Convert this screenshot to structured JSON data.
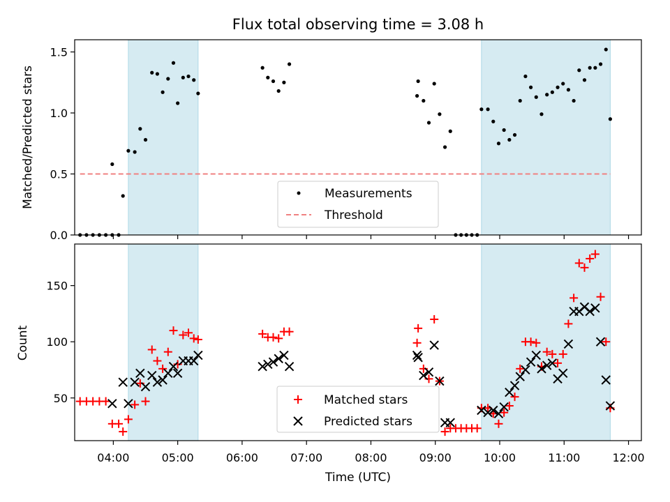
{
  "chart_data": [
    {
      "type": "scatter",
      "title": "Flux total observing time = 3.08 h",
      "ylabel": "Matched/Predicted stars",
      "xlabel": "",
      "xlim": [
        "03:24",
        "12:12"
      ],
      "ylim": [
        0,
        1.6
      ],
      "yticks": [
        "0.0",
        "0.5",
        "1.0",
        "1.5"
      ],
      "grid": false,
      "legend": {
        "placement": "bottom-center"
      },
      "shaded_intervals": [
        [
          "04:14",
          "05:19"
        ],
        [
          "09:43",
          "11:43"
        ]
      ],
      "threshold": {
        "name": "Threshold",
        "value": 0.5,
        "x_range": [
          "03:29",
          "11:43"
        ],
        "color": "#f08080"
      },
      "series": [
        {
          "name": "Measurements",
          "marker": "dot",
          "color": "#000000",
          "points": [
            [
              "03:29",
              0.0
            ],
            [
              "03:35",
              0.0
            ],
            [
              "03:41",
              0.0
            ],
            [
              "03:47",
              0.0
            ],
            [
              "03:53",
              0.0
            ],
            [
              "03:59",
              0.0
            ],
            [
              "03:59",
              0.58
            ],
            [
              "04:05",
              0.0
            ],
            [
              "04:09",
              0.32
            ],
            [
              "04:14",
              0.69
            ],
            [
              "04:20",
              0.68
            ],
            [
              "04:25",
              0.87
            ],
            [
              "04:30",
              0.78
            ],
            [
              "04:36",
              1.33
            ],
            [
              "04:41",
              1.32
            ],
            [
              "04:46",
              1.17
            ],
            [
              "04:51",
              1.28
            ],
            [
              "04:56",
              1.41
            ],
            [
              "05:00",
              1.08
            ],
            [
              "05:05",
              1.29
            ],
            [
              "05:10",
              1.3
            ],
            [
              "05:15",
              1.27
            ],
            [
              "05:19",
              1.16
            ],
            [
              "06:19",
              1.37
            ],
            [
              "06:24",
              1.29
            ],
            [
              "06:29",
              1.26
            ],
            [
              "06:34",
              1.18
            ],
            [
              "06:39",
              1.25
            ],
            [
              "06:44",
              1.4
            ],
            [
              "08:43",
              1.14
            ],
            [
              "08:44",
              1.26
            ],
            [
              "08:49",
              1.1
            ],
            [
              "08:54",
              0.92
            ],
            [
              "08:59",
              1.24
            ],
            [
              "09:04",
              0.99
            ],
            [
              "09:09",
              0.72
            ],
            [
              "09:14",
              0.85
            ],
            [
              "09:19",
              0.0
            ],
            [
              "09:24",
              0.0
            ],
            [
              "09:29",
              0.0
            ],
            [
              "09:34",
              0.0
            ],
            [
              "09:39",
              0.0
            ],
            [
              "09:43",
              1.03
            ],
            [
              "09:49",
              1.03
            ],
            [
              "09:54",
              0.93
            ],
            [
              "09:59",
              0.75
            ],
            [
              "10:04",
              0.86
            ],
            [
              "10:09",
              0.78
            ],
            [
              "10:14",
              0.82
            ],
            [
              "10:19",
              1.1
            ],
            [
              "10:24",
              1.3
            ],
            [
              "10:29",
              1.21
            ],
            [
              "10:34",
              1.13
            ],
            [
              "10:39",
              0.99
            ],
            [
              "10:44",
              1.15
            ],
            [
              "10:49",
              1.17
            ],
            [
              "10:54",
              1.21
            ],
            [
              "10:59",
              1.24
            ],
            [
              "11:04",
              1.19
            ],
            [
              "11:09",
              1.1
            ],
            [
              "11:14",
              1.35
            ],
            [
              "11:19",
              1.27
            ],
            [
              "11:24",
              1.37
            ],
            [
              "11:29",
              1.37
            ],
            [
              "11:34",
              1.4
            ],
            [
              "11:39",
              1.52
            ],
            [
              "11:43",
              0.95
            ]
          ]
        }
      ]
    },
    {
      "type": "scatter",
      "title": "",
      "xlabel": "Time (UTC)",
      "ylabel": "Count",
      "xlim": [
        "03:24",
        "12:12"
      ],
      "ylim": [
        12,
        187
      ],
      "xticks": [
        "04:00",
        "05:00",
        "06:00",
        "07:00",
        "08:00",
        "09:00",
        "10:00",
        "11:00",
        "12:00"
      ],
      "yticks": [
        "50",
        "100",
        "150"
      ],
      "grid": false,
      "legend": {
        "placement": "bottom-center"
      },
      "shaded_intervals": [
        [
          "04:14",
          "05:19"
        ],
        [
          "09:43",
          "11:43"
        ]
      ],
      "series": [
        {
          "name": "Matched stars",
          "marker": "plus",
          "color": "#ff0000",
          "points": [
            [
              "03:29",
              47
            ],
            [
              "03:35",
              47
            ],
            [
              "03:41",
              47
            ],
            [
              "03:47",
              47
            ],
            [
              "03:53",
              47
            ],
            [
              "03:59",
              27
            ],
            [
              "04:05",
              27
            ],
            [
              "04:09",
              20
            ],
            [
              "04:14",
              31
            ],
            [
              "04:20",
              44
            ],
            [
              "04:25",
              63
            ],
            [
              "04:30",
              47
            ],
            [
              "04:36",
              93
            ],
            [
              "04:41",
              83
            ],
            [
              "04:46",
              76
            ],
            [
              "04:51",
              91
            ],
            [
              "04:56",
              110
            ],
            [
              "05:00",
              80
            ],
            [
              "05:05",
              106
            ],
            [
              "05:10",
              108
            ],
            [
              "05:15",
              103
            ],
            [
              "05:19",
              102
            ],
            [
              "06:19",
              107
            ],
            [
              "06:24",
              104
            ],
            [
              "06:29",
              104
            ],
            [
              "06:34",
              103
            ],
            [
              "06:39",
              109
            ],
            [
              "06:44",
              109
            ],
            [
              "08:43",
              99
            ],
            [
              "08:44",
              112
            ],
            [
              "08:49",
              76
            ],
            [
              "08:54",
              67
            ],
            [
              "08:59",
              120
            ],
            [
              "09:04",
              65
            ],
            [
              "09:09",
              20
            ],
            [
              "09:14",
              23
            ],
            [
              "09:19",
              23
            ],
            [
              "09:24",
              23
            ],
            [
              "09:29",
              23
            ],
            [
              "09:34",
              23
            ],
            [
              "09:39",
              23
            ],
            [
              "09:43",
              41
            ],
            [
              "09:49",
              41
            ],
            [
              "09:54",
              36
            ],
            [
              "09:59",
              27
            ],
            [
              "10:04",
              37
            ],
            [
              "10:09",
              43
            ],
            [
              "10:14",
              51
            ],
            [
              "10:19",
              76
            ],
            [
              "10:24",
              100
            ],
            [
              "10:29",
              100
            ],
            [
              "10:34",
              99
            ],
            [
              "10:39",
              78
            ],
            [
              "10:44",
              91
            ],
            [
              "10:49",
              89
            ],
            [
              "10:54",
              81
            ],
            [
              "10:59",
              89
            ],
            [
              "11:04",
              116
            ],
            [
              "11:09",
              139
            ],
            [
              "11:14",
              170
            ],
            [
              "11:19",
              166
            ],
            [
              "11:24",
              174
            ],
            [
              "11:29",
              178
            ],
            [
              "11:34",
              140
            ],
            [
              "11:39",
              100
            ],
            [
              "11:43",
              41
            ]
          ]
        },
        {
          "name": "Predicted stars",
          "marker": "x",
          "color": "#000000",
          "points": [
            [
              "03:59",
              45
            ],
            [
              "04:09",
              64
            ],
            [
              "04:14",
              45
            ],
            [
              "04:20",
              64
            ],
            [
              "04:25",
              72
            ],
            [
              "04:30",
              60
            ],
            [
              "04:36",
              70
            ],
            [
              "04:41",
              64
            ],
            [
              "04:46",
              66
            ],
            [
              "04:51",
              72
            ],
            [
              "04:56",
              78
            ],
            [
              "05:00",
              72
            ],
            [
              "05:05",
              83
            ],
            [
              "05:10",
              83
            ],
            [
              "05:15",
              83
            ],
            [
              "05:19",
              88
            ],
            [
              "06:19",
              78
            ],
            [
              "06:24",
              80
            ],
            [
              "06:29",
              82
            ],
            [
              "06:34",
              85
            ],
            [
              "06:39",
              88
            ],
            [
              "06:44",
              78
            ],
            [
              "08:43",
              88
            ],
            [
              "08:44",
              86
            ],
            [
              "08:49",
              70
            ],
            [
              "08:54",
              73
            ],
            [
              "08:59",
              97
            ],
            [
              "09:04",
              65
            ],
            [
              "09:09",
              28
            ],
            [
              "09:14",
              28
            ],
            [
              "09:43",
              39
            ],
            [
              "09:49",
              37
            ],
            [
              "09:54",
              39
            ],
            [
              "09:59",
              36
            ],
            [
              "10:04",
              42
            ],
            [
              "10:09",
              55
            ],
            [
              "10:14",
              61
            ],
            [
              "10:19",
              69
            ],
            [
              "10:24",
              75
            ],
            [
              "10:29",
              82
            ],
            [
              "10:34",
              88
            ],
            [
              "10:39",
              76
            ],
            [
              "10:44",
              79
            ],
            [
              "10:49",
              81
            ],
            [
              "10:54",
              67
            ],
            [
              "10:59",
              72
            ],
            [
              "11:04",
              98
            ],
            [
              "11:09",
              127
            ],
            [
              "11:14",
              127
            ],
            [
              "11:19",
              131
            ],
            [
              "11:24",
              127
            ],
            [
              "11:29",
              130
            ],
            [
              "11:34",
              100
            ],
            [
              "11:39",
              66
            ],
            [
              "11:43",
              43
            ]
          ]
        }
      ]
    }
  ]
}
